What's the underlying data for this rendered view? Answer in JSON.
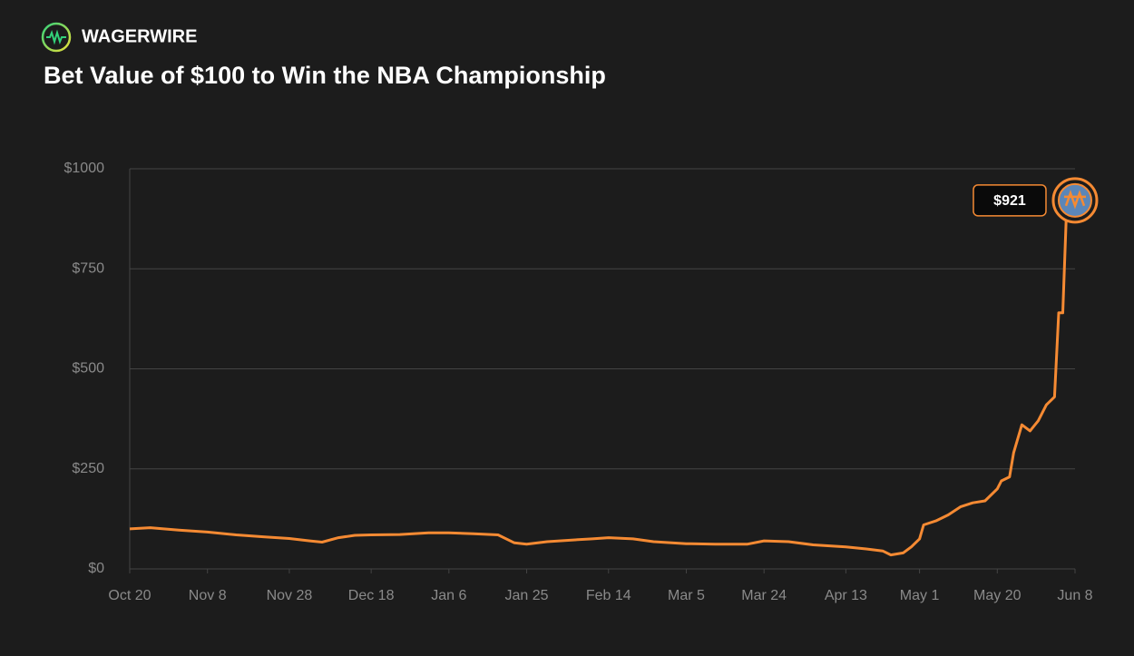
{
  "brand": "WAGERWIRE",
  "chart_data": {
    "type": "line",
    "title": "Bet Value of $100 to Win the NBA Championship",
    "x": [
      "Oct 20",
      "Oct 25",
      "Nov 1",
      "Nov 8",
      "Nov 15",
      "Nov 22",
      "Nov 28",
      "Dec 3",
      "Dec 6",
      "Dec 10",
      "Dec 14",
      "Dec 18",
      "Dec 25",
      "Jan 1",
      "Jan 6",
      "Jan 12",
      "Jan 18",
      "Jan 22",
      "Jan 25",
      "Jan 30",
      "Feb 5",
      "Feb 10",
      "Feb 14",
      "Feb 20",
      "Feb 25",
      "Mar 5",
      "Mar 12",
      "Mar 20",
      "Mar 24",
      "Mar 30",
      "Apr 5",
      "Apr 13",
      "Apr 18",
      "Apr 22",
      "Apr 24",
      "Apr 27",
      "Apr 29",
      "May 1",
      "May 2",
      "May 5",
      "May 8",
      "May 11",
      "May 14",
      "May 17",
      "May 20",
      "May 21",
      "May 23",
      "May 24",
      "May 26",
      "May 28",
      "May 30",
      "Jun 1",
      "Jun 3",
      "Jun 4",
      "Jun 5",
      "Jun 6"
    ],
    "series": [
      {
        "name": "New York Knicks",
        "color": "#f58a33",
        "values": [
          100,
          103,
          97,
          92,
          85,
          80,
          76,
          70,
          67,
          78,
          84,
          85,
          86,
          90,
          90,
          88,
          85,
          65,
          62,
          68,
          72,
          75,
          78,
          75,
          68,
          63,
          62,
          62,
          70,
          68,
          60,
          55,
          50,
          45,
          35,
          40,
          55,
          75,
          110,
          120,
          135,
          155,
          165,
          170,
          200,
          220,
          230,
          290,
          360,
          345,
          370,
          410,
          430,
          640,
          640,
          921
        ],
        "value_labels": [
          null,
          null,
          null,
          null,
          null,
          null,
          null,
          null,
          null,
          null,
          null,
          null,
          null,
          null,
          null,
          null,
          null,
          null,
          null,
          null,
          null,
          null,
          null,
          null,
          null,
          null,
          null,
          null,
          null,
          null,
          null,
          null,
          null,
          null,
          null,
          null,
          null,
          null,
          null,
          null,
          null,
          null,
          null,
          null,
          null,
          null,
          null,
          null,
          null,
          null,
          null,
          null,
          null,
          null,
          null,
          "$921"
        ]
      }
    ],
    "xlim": [
      "Oct 20",
      "Jun 8"
    ],
    "xticks": [
      "Oct 20",
      "Nov 8",
      "Nov 28",
      "Dec 18",
      "Jan 6",
      "Jan 25",
      "Feb 14",
      "Mar 5",
      "Mar 24",
      "Apr 13",
      "May 1",
      "May 20",
      "Jun 8"
    ],
    "ylim": [
      0,
      1000
    ],
    "yticks": [
      {
        "value": 0,
        "label": "$0"
      },
      {
        "value": 250,
        "label": "$250"
      },
      {
        "value": 500,
        "label": "$500"
      },
      {
        "value": 750,
        "label": "$750"
      },
      {
        "value": 1000,
        "label": "$1000"
      }
    ],
    "grid": true
  }
}
